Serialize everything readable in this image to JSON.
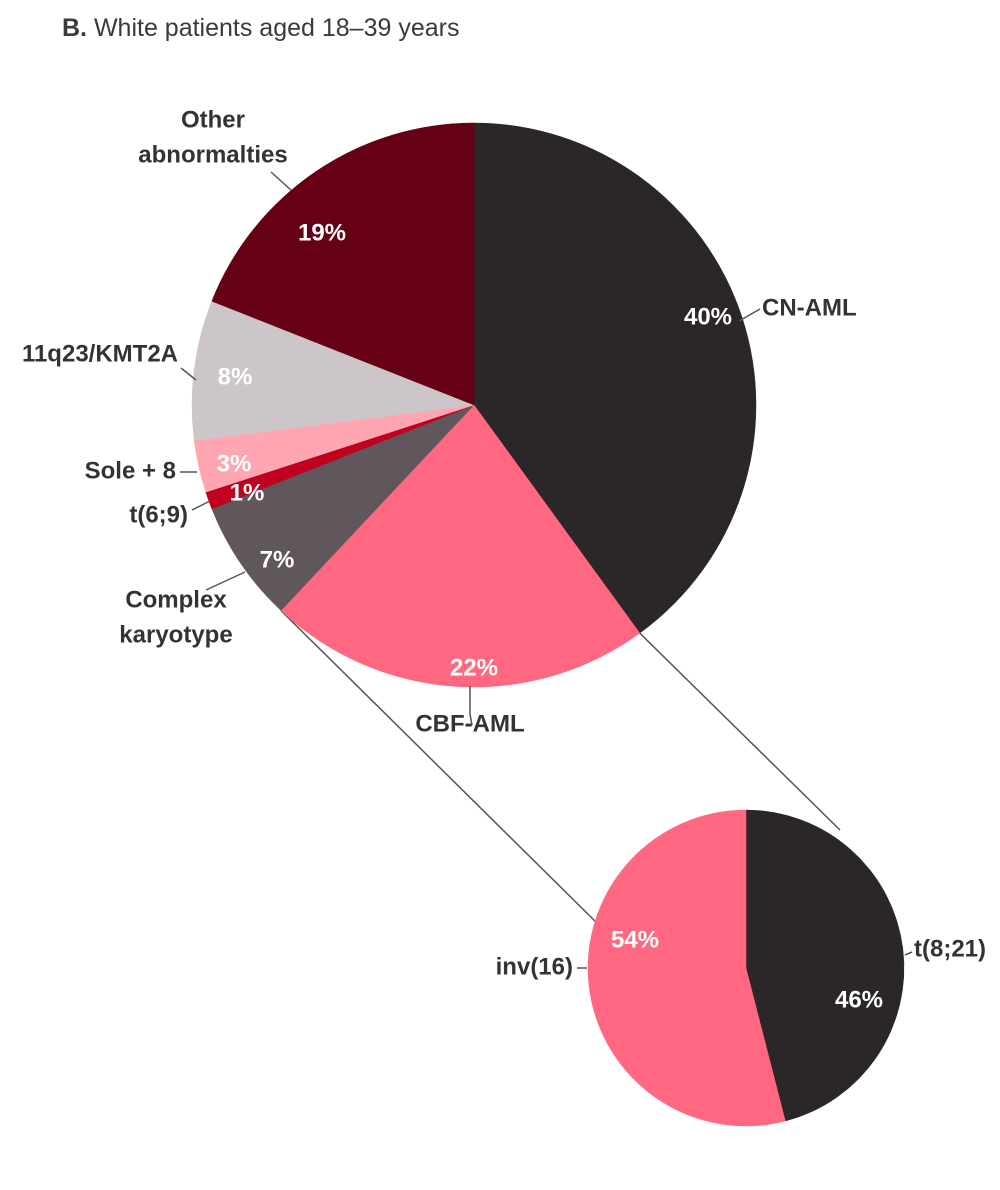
{
  "title": {
    "prefix": "B.",
    "text": "White patients aged 18–39 years"
  },
  "chart_data": [
    {
      "type": "pie",
      "slices": [
        {
          "label": "CN-AML",
          "value": 40,
          "value_label": "40%",
          "color": "#2b2628"
        },
        {
          "label": "CBF-AML",
          "value": 22,
          "value_label": "22%",
          "color": "#ff6880"
        },
        {
          "label": "Complex karyotype",
          "value": 7,
          "value_label": "7%",
          "color": "#5f575b"
        },
        {
          "label": "t(6;9)",
          "value": 1,
          "value_label": "1%",
          "color": "#c0001f"
        },
        {
          "label": "Sole + 8",
          "value": 3,
          "value_label": "3%",
          "color": "#ffa6b2"
        },
        {
          "label": "11q23/KMT2A",
          "value": 8,
          "value_label": "8%",
          "color": "#cdc6c9"
        },
        {
          "label": "Other abnormalties",
          "value": 19,
          "value_label": "19%",
          "color": "#660014"
        }
      ]
    },
    {
      "type": "pie",
      "slices": [
        {
          "label": "t(8;21)",
          "value": 46,
          "value_label": "46%",
          "color": "#2b2628"
        },
        {
          "label": "inv(16)",
          "value": 54,
          "value_label": "54%",
          "color": "#ff6880"
        }
      ]
    }
  ]
}
